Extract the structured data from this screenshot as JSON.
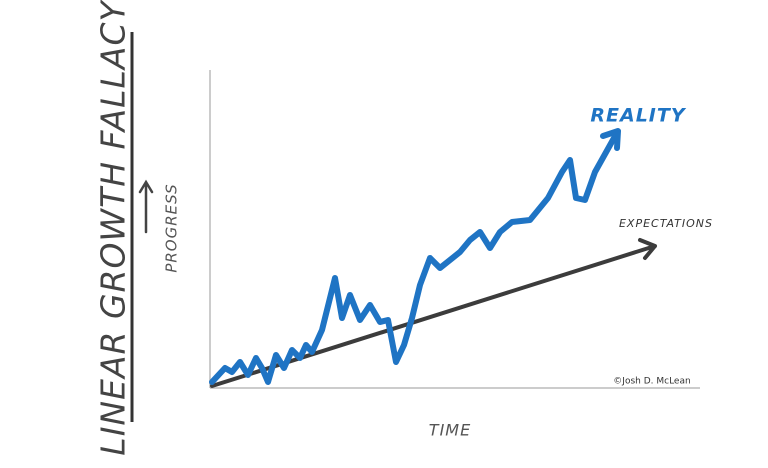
{
  "title": "LINEAR GROWTH FALLACY",
  "y_axis_label": "PROGRESS",
  "x_axis_label": "TIME",
  "lines": [
    {
      "label": "REALITY"
    },
    {
      "label": "EXPECTATIONS"
    }
  ],
  "credit": "©Josh D. McLean"
}
